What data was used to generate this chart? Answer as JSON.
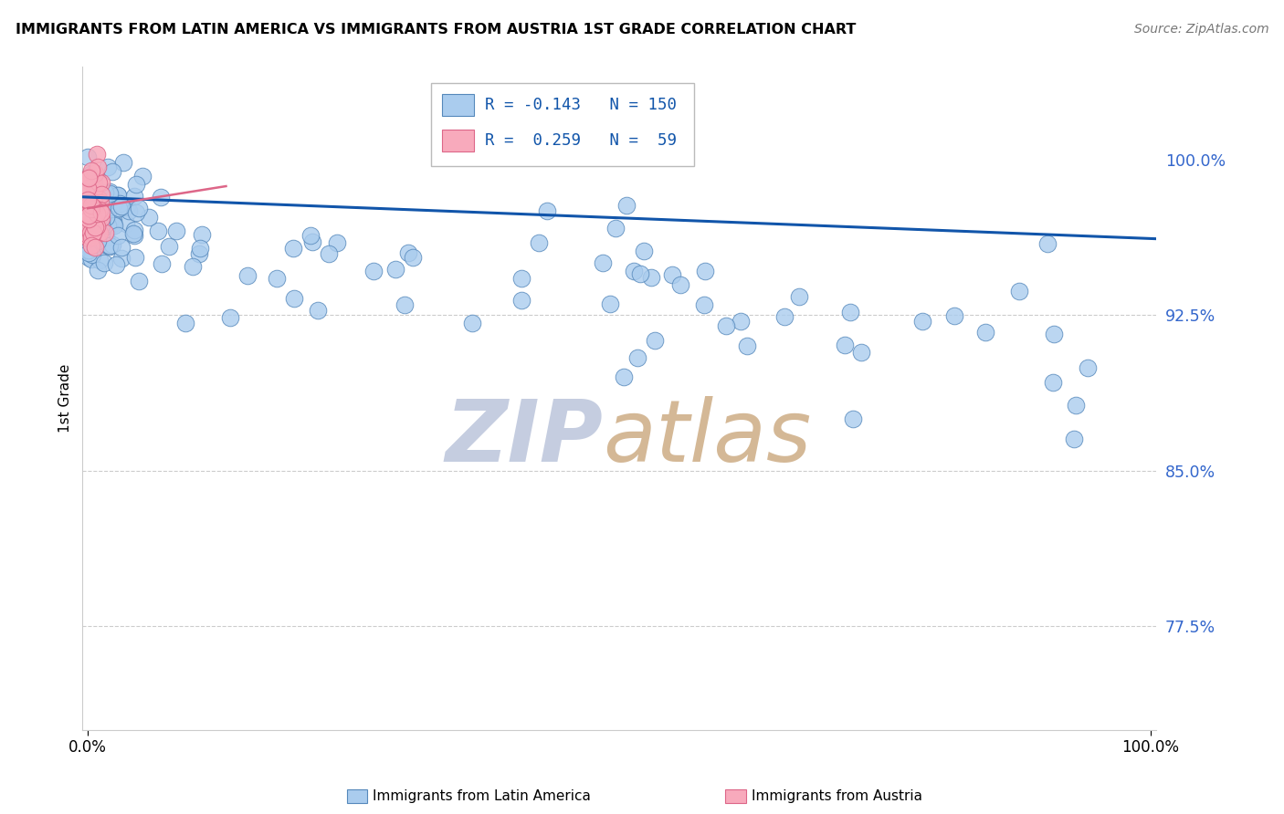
{
  "title": "IMMIGRANTS FROM LATIN AMERICA VS IMMIGRANTS FROM AUSTRIA 1ST GRADE CORRELATION CHART",
  "source_text": "Source: ZipAtlas.com",
  "ylabel": "1st Grade",
  "legend_blue_label": "Immigrants from Latin America",
  "legend_pink_label": "Immigrants from Austria",
  "blue_R": -0.143,
  "blue_N": 150,
  "pink_R": 0.259,
  "pink_N": 59,
  "blue_color": "#aaccee",
  "blue_edge_color": "#5588bb",
  "pink_color": "#f8aabc",
  "pink_edge_color": "#dd6688",
  "trend_blue_color": "#1155aa",
  "trend_pink_color": "#dd6688",
  "ytick_color": "#3366cc",
  "watermark_zip_color": "#c5cde0",
  "watermark_atlas_color": "#d4b896",
  "yticks": [
    0.775,
    0.85,
    0.925,
    1.0
  ],
  "ytick_labels": [
    "77.5%",
    "85.0%",
    "92.5%",
    "100.0%"
  ],
  "ymin": 0.725,
  "ymax": 1.045,
  "xmin": -0.005,
  "xmax": 1.005
}
